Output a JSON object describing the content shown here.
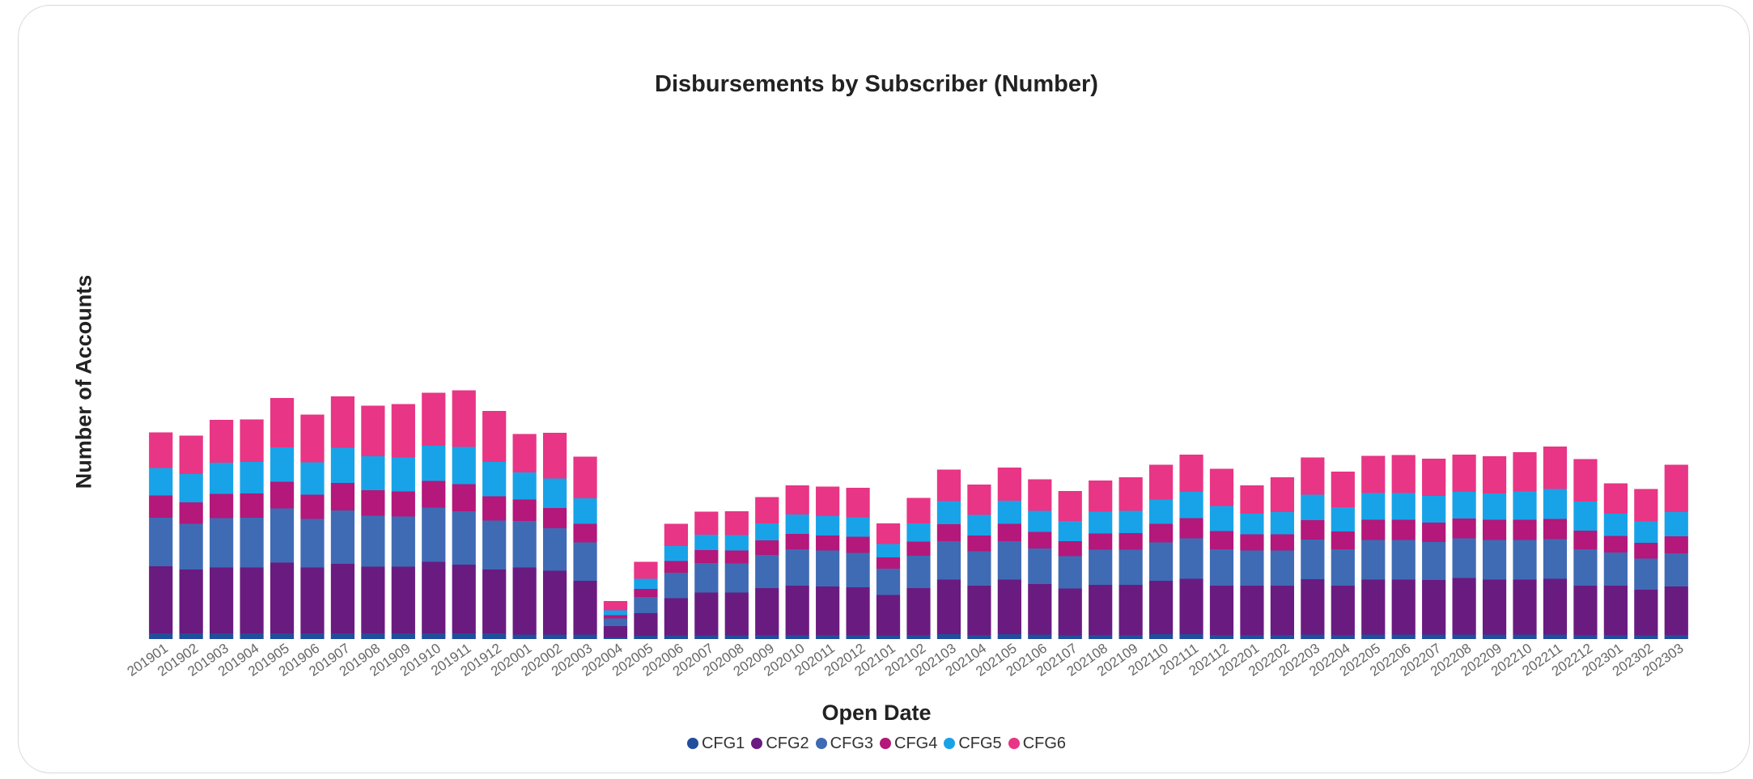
{
  "chart_data": {
    "type": "bar",
    "stacked": true,
    "title": "Disbursements by Subscriber (Number)",
    "xlabel": "Open Date",
    "ylabel": "Number of Accounts",
    "grid": false,
    "legend_position": "bottom",
    "categories": [
      "201901",
      "201902",
      "201903",
      "201904",
      "201905",
      "201906",
      "201907",
      "201908",
      "201909",
      "201910",
      "201911",
      "201912",
      "202001",
      "202002",
      "202003",
      "202004",
      "202005",
      "202006",
      "202007",
      "202008",
      "202009",
      "202010",
      "202011",
      "202012",
      "202101",
      "202102",
      "202103",
      "202104",
      "202105",
      "202106",
      "202107",
      "202108",
      "202109",
      "202110",
      "202111",
      "202112",
      "202201",
      "202202",
      "202203",
      "202204",
      "202205",
      "202206",
      "202207",
      "202208",
      "202209",
      "202210",
      "202211",
      "202212",
      "202301",
      "202302",
      "202303"
    ],
    "series": [
      {
        "name": "CFG1",
        "color": "#1f4e9c",
        "values": [
          14,
          14,
          14,
          14,
          14,
          14,
          14,
          14,
          14,
          14,
          14,
          14,
          11,
          11,
          11,
          4,
          8,
          9,
          9,
          9,
          10,
          10,
          10,
          10,
          9,
          10,
          12,
          10,
          12,
          11,
          9,
          10,
          10,
          12,
          12,
          10,
          10,
          10,
          11,
          10,
          11,
          11,
          11,
          11,
          11,
          11,
          11,
          10,
          10,
          9,
          10
        ]
      },
      {
        "name": "CFG2",
        "color": "#6a1b80",
        "values": [
          166,
          158,
          163,
          163,
          175,
          163,
          172,
          165,
          165,
          177,
          170,
          158,
          166,
          158,
          133,
          28,
          56,
          92,
          106,
          106,
          116,
          122,
          120,
          118,
          100,
          116,
          135,
          122,
          135,
          125,
          116,
          124,
          124,
          132,
          137,
          122,
          122,
          122,
          137,
          122,
          136,
          136,
          135,
          140,
          136,
          136,
          138,
          122,
          122,
          113,
          120
        ]
      },
      {
        "name": "CFG3",
        "color": "#3f6bb5",
        "values": [
          120,
          113,
          122,
          123,
          134,
          120,
          132,
          126,
          124,
          134,
          132,
          121,
          115,
          105,
          95,
          19,
          40,
          63,
          73,
          72,
          82,
          90,
          89,
          85,
          65,
          80,
          95,
          85,
          95,
          88,
          80,
          87,
          87,
          95,
          100,
          90,
          87,
          87,
          98,
          90,
          98,
          98,
          94,
          98,
          98,
          98,
          98,
          90,
          82,
          77,
          82
        ]
      },
      {
        "name": "CFG4",
        "color": "#b3187a",
        "values": [
          55,
          53,
          60,
          60,
          66,
          60,
          68,
          63,
          62,
          66,
          67,
          60,
          53,
          50,
          46,
          8,
          20,
          29,
          32,
          32,
          36,
          38,
          37,
          40,
          28,
          35,
          42,
          39,
          43,
          41,
          37,
          40,
          41,
          46,
          50,
          45,
          40,
          40,
          48,
          44,
          50,
          50,
          48,
          49,
          50,
          50,
          50,
          46,
          41,
          39,
          42
        ]
      },
      {
        "name": "CFG5",
        "color": "#18a3e8",
        "values": [
          68,
          70,
          77,
          78,
          85,
          80,
          87,
          84,
          84,
          87,
          92,
          85,
          67,
          73,
          63,
          12,
          25,
          37,
          38,
          38,
          42,
          48,
          48,
          48,
          33,
          45,
          57,
          51,
          57,
          52,
          50,
          54,
          55,
          60,
          65,
          62,
          51,
          55,
          63,
          60,
          66,
          66,
          66,
          66,
          65,
          70,
          74,
          72,
          55,
          53,
          60
        ]
      },
      {
        "name": "CFG6",
        "color": "#e83585",
        "values": [
          88,
          95,
          106,
          105,
          122,
          118,
          127,
          125,
          132,
          131,
          140,
          126,
          95,
          113,
          103,
          23,
          42,
          55,
          57,
          59,
          65,
          72,
          73,
          73,
          51,
          63,
          78,
          75,
          82,
          78,
          74,
          77,
          83,
          86,
          92,
          92,
          70,
          86,
          92,
          88,
          92,
          94,
          92,
          92,
          92,
          97,
          105,
          105,
          75,
          80,
          117
        ]
      }
    ]
  }
}
